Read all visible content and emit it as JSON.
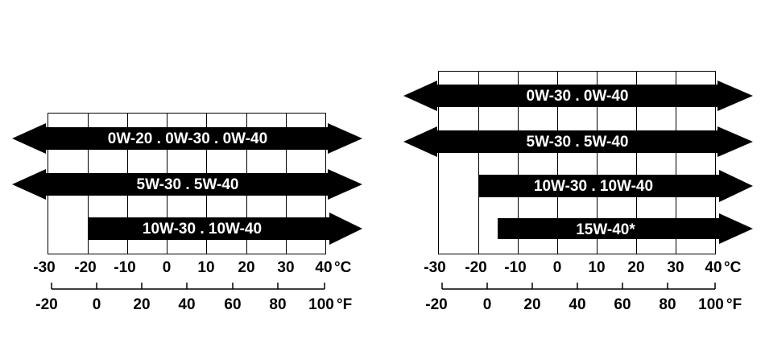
{
  "charts": [
    {
      "celsius_ticks": [
        "-30",
        "-20",
        "-10",
        "0",
        "10",
        "20",
        "30",
        "40"
      ],
      "celsius_unit": "°C",
      "fahrenheit_ticks": [
        "-20",
        "0",
        "20",
        "40",
        "60",
        "80",
        "100"
      ],
      "fahrenheit_unit": "°F",
      "bands": [
        {
          "label": "0W-20 . 0W-30 . 0W-40",
          "from_c": null,
          "to_c": null
        },
        {
          "label": "5W-30 . 5W-40",
          "from_c": null,
          "to_c": null
        },
        {
          "label": "10W-30 . 10W-40",
          "from_c": -20,
          "to_c": null
        }
      ]
    },
    {
      "celsius_ticks": [
        "-30",
        "-20",
        "-10",
        "0",
        "10",
        "20",
        "30",
        "40"
      ],
      "celsius_unit": "°C",
      "fahrenheit_ticks": [
        "-20",
        "0",
        "20",
        "40",
        "60",
        "80",
        "100"
      ],
      "fahrenheit_unit": "°F",
      "bands": [
        {
          "label": "0W-30 . 0W-40",
          "from_c": null,
          "to_c": null
        },
        {
          "label": "5W-30 . 5W-40",
          "from_c": null,
          "to_c": null
        },
        {
          "label": "10W-30 . 10W-40",
          "from_c": -20,
          "to_c": null
        },
        {
          "label": "15W-40*",
          "from_c": -15,
          "to_c": null
        }
      ]
    }
  ]
}
